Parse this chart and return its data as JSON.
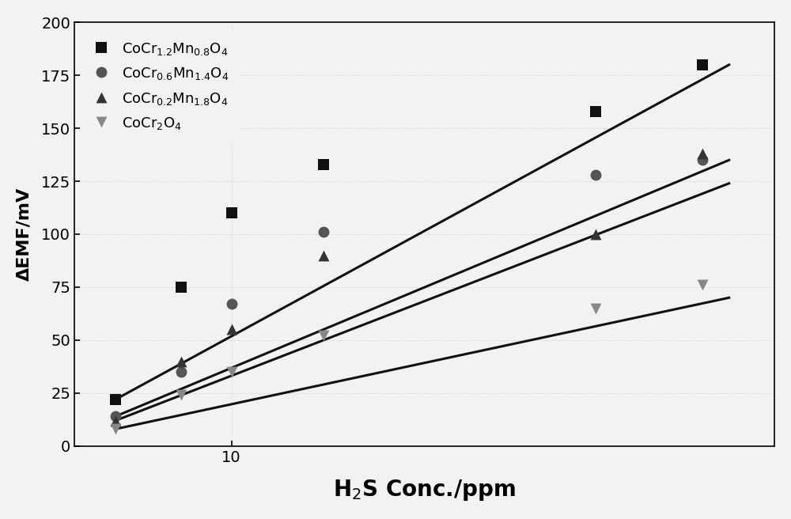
{
  "title": "",
  "xlabel": "H$_2$S Conc./ppm",
  "ylabel": "ΔEMF/mV",
  "xlim": [
    5,
    110
  ],
  "ylim": [
    0,
    200
  ],
  "yticks": [
    0,
    25,
    50,
    75,
    100,
    125,
    150,
    175,
    200
  ],
  "background_color": "#f2f2f2",
  "plot_bg_color": "#f2f2f2",
  "series": [
    {
      "label": "CoCr$_{1.2}$Mn$_{0.8}$O$_4$",
      "color": "#111111",
      "marker": "s",
      "markersize": 100,
      "x_data": [
        6,
        8,
        10,
        15,
        50,
        80
      ],
      "y_data": [
        22,
        75,
        110,
        133,
        158,
        180
      ],
      "fit_x": [
        6,
        90
      ],
      "fit_y": [
        22,
        180
      ]
    },
    {
      "label": "CoCr$_{0.6}$Mn$_{1.4}$O$_4$",
      "color": "#555555",
      "marker": "o",
      "markersize": 100,
      "x_data": [
        6,
        8,
        10,
        15,
        50,
        80
      ],
      "y_data": [
        14,
        35,
        67,
        101,
        128,
        135
      ],
      "fit_x": [
        6,
        90
      ],
      "fit_y": [
        14,
        135
      ]
    },
    {
      "label": "CoCr$_{0.2}$Mn$_{1.8}$O$_4$",
      "color": "#333333",
      "marker": "^",
      "markersize": 100,
      "x_data": [
        6,
        8,
        10,
        15,
        50,
        80
      ],
      "y_data": [
        12,
        40,
        55,
        90,
        100,
        138
      ],
      "fit_x": [
        6,
        90
      ],
      "fit_y": [
        12,
        124
      ]
    },
    {
      "label": "CoCr$_2$O$_4$",
      "color": "#888888",
      "marker": "v",
      "markersize": 100,
      "x_data": [
        6,
        8,
        10,
        15,
        50,
        80
      ],
      "y_data": [
        8,
        24,
        35,
        52,
        65,
        76
      ],
      "fit_x": [
        6,
        90
      ],
      "fit_y": [
        8,
        70
      ]
    }
  ]
}
